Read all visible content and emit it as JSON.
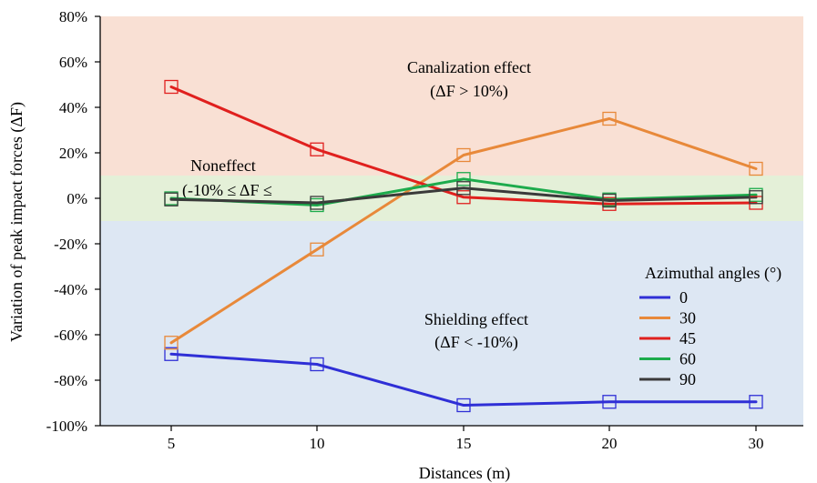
{
  "chart_data": {
    "type": "line",
    "xlabel": "Distances (m)",
    "ylabel": "Variation of peak impact forces  (ΔF)",
    "categories": [
      "5",
      "10",
      "15",
      "20",
      "30"
    ],
    "ylim": [
      -100,
      80
    ],
    "yticks": [
      -100,
      -80,
      -60,
      -40,
      -20,
      0,
      20,
      40,
      60,
      80
    ],
    "ytick_suffix": "%",
    "grid": false,
    "legend": {
      "title": "Azimuthal angles (°)",
      "placement": "bottom-right"
    },
    "regions": [
      {
        "name": "canalization",
        "from": 10,
        "to": 80,
        "color": "#f9e0d4",
        "label": "Canalization effect",
        "sublabel": "(ΔF > 10%)"
      },
      {
        "name": "noneffect",
        "from": -10,
        "to": 10,
        "color": "#e4f0d8",
        "label": "Noneffect",
        "sublabel": "(-10% ≤ ΔF ≤"
      },
      {
        "name": "shielding",
        "from": -100,
        "to": -10,
        "color": "#dde7f3",
        "label": "Shielding effect",
        "sublabel": "(ΔF < -10%)"
      }
    ],
    "series": [
      {
        "name": "0",
        "color": "#2f2fd6",
        "values": [
          -68.5,
          -73,
          -91,
          -89.5,
          -89.5
        ]
      },
      {
        "name": "30",
        "color": "#e8893a",
        "values": [
          -63.5,
          -22.5,
          19,
          35,
          13
        ]
      },
      {
        "name": "45",
        "color": "#e0201e",
        "values": [
          49,
          21.5,
          0.5,
          -2.5,
          -2
        ]
      },
      {
        "name": "60",
        "color": "#1cab4c",
        "values": [
          0,
          -3,
          8.5,
          -0.5,
          1.5
        ]
      },
      {
        "name": "90",
        "color": "#3a3a3a",
        "values": [
          -0.5,
          -2,
          4.5,
          -1,
          0.5
        ]
      }
    ]
  }
}
